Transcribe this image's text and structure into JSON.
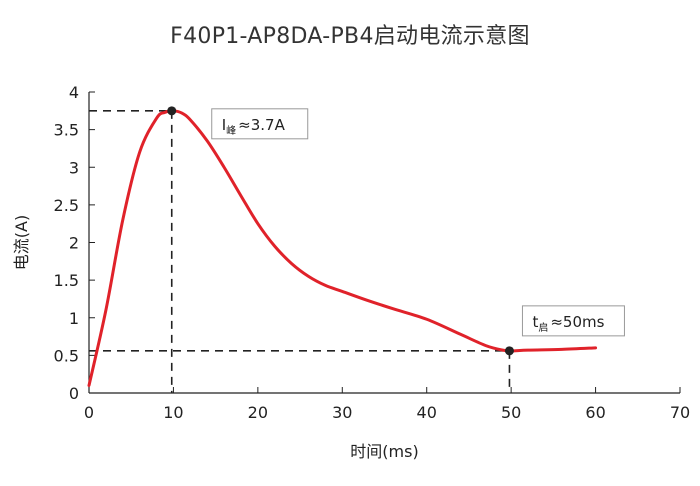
{
  "chart_data": {
    "type": "line",
    "title": "F40P1-AP8DA-PB4启动电流示意图",
    "xlabel": "时间(ms)",
    "ylabel": "电流(A)",
    "xlim": [
      0,
      70
    ],
    "ylim": [
      0,
      4
    ],
    "x_ticks": [
      "0",
      "10",
      "20",
      "30",
      "40",
      "50",
      "60",
      "70"
    ],
    "y_ticks": [
      "0",
      "0.5",
      "1",
      "1.5",
      "2",
      "2.5",
      "3",
      "3.5",
      "4"
    ],
    "grid": false,
    "series": [
      {
        "color": "#e0222a",
        "x": [
          0,
          2,
          4,
          6,
          8,
          9,
          10,
          11,
          12,
          14,
          16,
          18,
          20,
          22,
          24,
          26,
          28,
          30,
          33,
          36,
          40,
          44,
          47,
          49,
          50,
          52,
          56,
          60
        ],
        "y": [
          0.1,
          1.1,
          2.3,
          3.2,
          3.65,
          3.73,
          3.75,
          3.72,
          3.63,
          3.35,
          3.0,
          2.62,
          2.25,
          1.95,
          1.72,
          1.55,
          1.43,
          1.35,
          1.23,
          1.12,
          0.98,
          0.78,
          0.63,
          0.57,
          0.56,
          0.57,
          0.58,
          0.6
        ]
      }
    ],
    "annotations": [
      {
        "x": 9.8,
        "y": 3.75,
        "text_main": "I",
        "text_sub": "峰",
        "text_rest": "≈3.7A"
      },
      {
        "x": 49.8,
        "y": 0.56,
        "text_main": "t",
        "text_sub": "启",
        "text_rest": "≈50ms"
      }
    ],
    "colors": {
      "line": "#e0222a",
      "guide": "#222222",
      "marker": "#222222"
    }
  }
}
